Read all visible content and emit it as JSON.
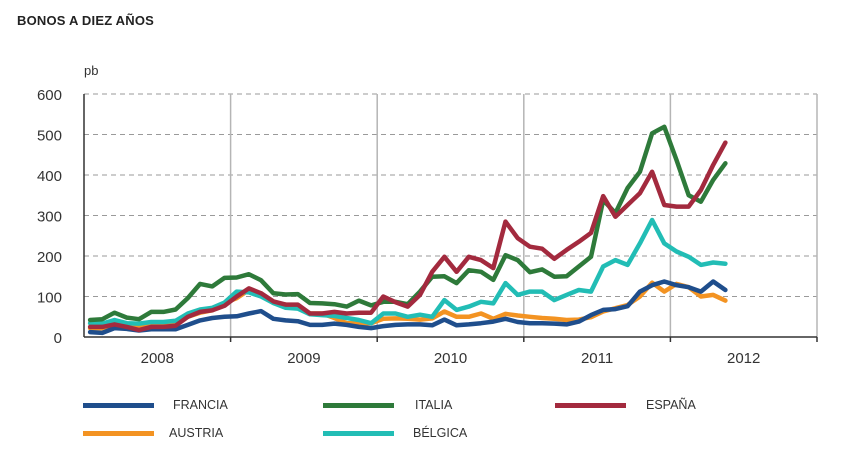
{
  "chart_data": {
    "type": "line",
    "title": "BONOS A DIEZ AÑOS",
    "ylabel": "pb",
    "xlabel": "",
    "ylim": [
      0,
      600
    ],
    "yticks": [
      0,
      100,
      200,
      300,
      400,
      500,
      600
    ],
    "ytick_labels": [
      "0",
      "100",
      "200",
      "300",
      "400",
      "500",
      "600"
    ],
    "xlim": [
      2008,
      2013
    ],
    "xtick_labels": [
      "2008",
      "2009",
      "2010",
      "2011",
      "2012"
    ],
    "x_frequency": "monthly, Jan 2008 - May 2012",
    "grid": "horizontal dashed, vertical solid at year boundaries",
    "legend_placement": "bottom",
    "series": [
      {
        "name": "FRANCIA",
        "color": "#1f4e8c",
        "values": [
          12,
          10,
          22,
          20,
          16,
          19,
          19,
          19,
          30,
          41,
          47,
          50,
          51,
          58,
          64,
          45,
          41,
          39,
          30,
          30,
          33,
          30,
          25,
          22,
          27,
          30,
          31,
          31,
          29,
          43,
          29,
          31,
          34,
          38,
          45,
          37,
          34,
          34,
          33,
          31,
          38,
          54,
          67,
          69,
          76,
          112,
          128,
          137,
          128,
          123,
          112,
          137,
          116
        ]
      },
      {
        "name": "ITALIA",
        "color": "#2e7a3a",
        "values": [
          42,
          44,
          60,
          48,
          44,
          62,
          62,
          68,
          96,
          131,
          125,
          146,
          147,
          155,
          140,
          108,
          105,
          106,
          84,
          83,
          81,
          75,
          90,
          78,
          87,
          87,
          81,
          112,
          149,
          150,
          133,
          165,
          161,
          141,
          202,
          190,
          160,
          167,
          149,
          150,
          174,
          198,
          338,
          306,
          368,
          408,
          503,
          519,
          437,
          350,
          334,
          388,
          429
        ]
      },
      {
        "name": "ESPAÑA",
        "color": "#a32a3e",
        "values": [
          25,
          25,
          31,
          25,
          17,
          25,
          25,
          28,
          50,
          62,
          66,
          77,
          100,
          120,
          108,
          88,
          80,
          80,
          58,
          58,
          62,
          58,
          60,
          60,
          100,
          86,
          75,
          104,
          161,
          198,
          161,
          198,
          190,
          170,
          285,
          244,
          223,
          218,
          193,
          215,
          235,
          257,
          348,
          297,
          326,
          355,
          408,
          326,
          322,
          322,
          363,
          425,
          480
        ]
      },
      {
        "name": "AUSTRIA",
        "color": "#f39322",
        "values": [
          22,
          22,
          33,
          27,
          27,
          28,
          30,
          30,
          50,
          60,
          66,
          84,
          96,
          116,
          108,
          84,
          80,
          75,
          58,
          58,
          47,
          34,
          34,
          34,
          45,
          46,
          45,
          43,
          46,
          63,
          50,
          50,
          58,
          45,
          57,
          53,
          50,
          47,
          45,
          42,
          43,
          49,
          63,
          71,
          79,
          100,
          134,
          112,
          131,
          123,
          100,
          104,
          90
        ]
      },
      {
        "name": "BÉLGICA",
        "color": "#22bdb5",
        "values": [
          34,
          33,
          42,
          34,
          33,
          37,
          37,
          40,
          58,
          68,
          72,
          85,
          112,
          110,
          100,
          84,
          72,
          70,
          56,
          54,
          52,
          47,
          42,
          34,
          58,
          58,
          50,
          55,
          50,
          91,
          67,
          75,
          87,
          83,
          133,
          104,
          112,
          112,
          91,
          104,
          116,
          112,
          174,
          190,
          178,
          231,
          289,
          231,
          211,
          198,
          178,
          184,
          181
        ]
      }
    ],
    "legend_order": [
      "FRANCIA",
      "ITALIA",
      "ESPAÑA",
      "AUSTRIA",
      "BÉLGICA"
    ]
  }
}
